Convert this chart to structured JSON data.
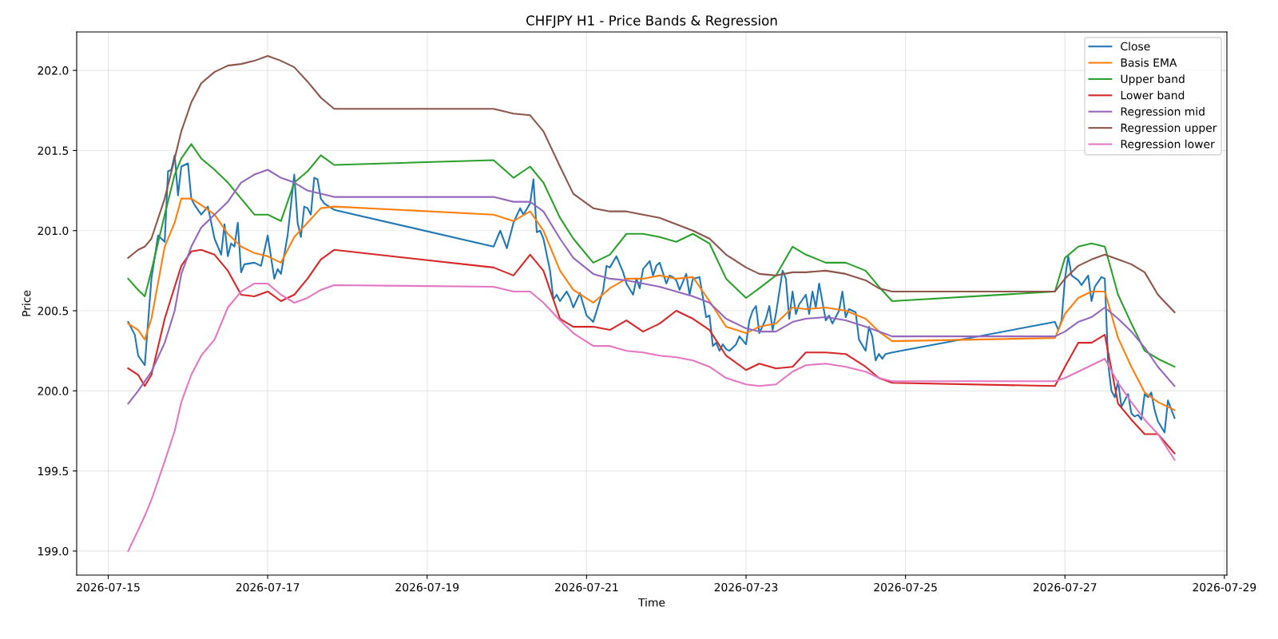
{
  "chart_data": {
    "type": "line",
    "title": "CHFJPY H1 - Price Bands & Regression",
    "xlabel": "Time",
    "ylabel": "Price",
    "series": [
      {
        "name": "Close",
        "color": "#1f77b4",
        "x": [
          "2026-07-15T06:00",
          "2026-07-15T08:00",
          "2026-07-15T09:00",
          "2026-07-15T11:00",
          "2026-07-15T13:00",
          "2026-07-15T15:00",
          "2026-07-15T17:00",
          "2026-07-15T18:00",
          "2026-07-15T19:00",
          "2026-07-15T20:00",
          "2026-07-15T21:00",
          "2026-07-15T22:00",
          "2026-07-16T00:00",
          "2026-07-16T01:00",
          "2026-07-16T02:00",
          "2026-07-16T04:00",
          "2026-07-16T06:00",
          "2026-07-16T08:00",
          "2026-07-16T10:00",
          "2026-07-16T11:00",
          "2026-07-16T12:00",
          "2026-07-16T13:00",
          "2026-07-16T14:00",
          "2026-07-16T15:00",
          "2026-07-16T16:00",
          "2026-07-16T17:00",
          "2026-07-16T20:00",
          "2026-07-16T22:00",
          "2026-07-17T00:00",
          "2026-07-17T02:00",
          "2026-07-17T03:00",
          "2026-07-17T04:00",
          "2026-07-17T06:00",
          "2026-07-17T08:00",
          "2026-07-17T09:00",
          "2026-07-17T10:00",
          "2026-07-17T11:00",
          "2026-07-17T12:00",
          "2026-07-17T13:00",
          "2026-07-17T14:00",
          "2026-07-17T15:00",
          "2026-07-17T16:00",
          "2026-07-17T17:00",
          "2026-07-17T20:00",
          "2026-07-19T20:00",
          "2026-07-19T22:00",
          "2026-07-20T00:00",
          "2026-07-20T02:00",
          "2026-07-20T04:00",
          "2026-07-20T05:00",
          "2026-07-20T07:00",
          "2026-07-20T08:00",
          "2026-07-20T09:00",
          "2026-07-20T10:00",
          "2026-07-20T11:00",
          "2026-07-20T13:00",
          "2026-07-20T14:00",
          "2026-07-20T15:00",
          "2026-07-20T16:00",
          "2026-07-20T18:00",
          "2026-07-20T19:00",
          "2026-07-20T20:00",
          "2026-07-20T22:00",
          "2026-07-21T00:00",
          "2026-07-21T02:00",
          "2026-07-21T05:00",
          "2026-07-21T06:00",
          "2026-07-21T07:00",
          "2026-07-21T09:00",
          "2026-07-21T11:00",
          "2026-07-21T12:00",
          "2026-07-21T14:00",
          "2026-07-21T15:00",
          "2026-07-21T16:00",
          "2026-07-21T17:00",
          "2026-07-21T19:00",
          "2026-07-21T20:00",
          "2026-07-21T21:00",
          "2026-07-21T22:00",
          "2026-07-22T00:00",
          "2026-07-22T01:00",
          "2026-07-22T02:00",
          "2026-07-22T03:00",
          "2026-07-22T04:00",
          "2026-07-22T06:00",
          "2026-07-22T07:00",
          "2026-07-22T08:00",
          "2026-07-22T10:00",
          "2026-07-22T12:00",
          "2026-07-22T13:00",
          "2026-07-22T14:00",
          "2026-07-22T15:00",
          "2026-07-22T16:00",
          "2026-07-22T17:00",
          "2026-07-22T18:00",
          "2026-07-22T19:00",
          "2026-07-22T21:00",
          "2026-07-22T22:00",
          "2026-07-23T00:00",
          "2026-07-23T01:00",
          "2026-07-23T02:00",
          "2026-07-23T03:00",
          "2026-07-23T04:00",
          "2026-07-23T06:00",
          "2026-07-23T07:00",
          "2026-07-23T08:00",
          "2026-07-23T09:00",
          "2026-07-23T11:00",
          "2026-07-23T12:00",
          "2026-07-23T13:00",
          "2026-07-23T14:00",
          "2026-07-23T15:00",
          "2026-07-23T16:00",
          "2026-07-23T18:00",
          "2026-07-23T19:00",
          "2026-07-23T20:00",
          "2026-07-23T21:00",
          "2026-07-23T22:00",
          "2026-07-24T00:00",
          "2026-07-24T01:00",
          "2026-07-24T02:00",
          "2026-07-24T04:00",
          "2026-07-24T05:00",
          "2026-07-24T06:00",
          "2026-07-24T07:00",
          "2026-07-24T09:00",
          "2026-07-24T10:00",
          "2026-07-24T12:00",
          "2026-07-24T13:00",
          "2026-07-24T14:00",
          "2026-07-24T15:00",
          "2026-07-24T16:00",
          "2026-07-24T17:00",
          "2026-07-24T18:00",
          "2026-07-24T20:00",
          "2026-07-26T21:00",
          "2026-07-26T22:00",
          "2026-07-26T23:00",
          "2026-07-27T00:00",
          "2026-07-27T01:00",
          "2026-07-27T02:00",
          "2026-07-27T04:00",
          "2026-07-27T05:00",
          "2026-07-27T07:00",
          "2026-07-27T08:00",
          "2026-07-27T09:00",
          "2026-07-27T10:00",
          "2026-07-27T11:00",
          "2026-07-27T12:00",
          "2026-07-27T13:00",
          "2026-07-27T14:00",
          "2026-07-27T15:00",
          "2026-07-27T16:00",
          "2026-07-27T17:00",
          "2026-07-27T19:00",
          "2026-07-27T20:00",
          "2026-07-27T21:00",
          "2026-07-27T22:00",
          "2026-07-27T23:00",
          "2026-07-28T00:00",
          "2026-07-28T01:00",
          "2026-07-28T02:00",
          "2026-07-28T03:00",
          "2026-07-28T04:00",
          "2026-07-28T06:00",
          "2026-07-28T07:00",
          "2026-07-28T09:00"
        ],
        "values": [
          200.43,
          200.35,
          200.22,
          200.16,
          200.7,
          200.97,
          200.93,
          201.37,
          201.38,
          201.47,
          201.22,
          201.4,
          201.42,
          201.2,
          201.16,
          201.1,
          201.15,
          200.95,
          200.85,
          201.04,
          200.84,
          200.92,
          200.9,
          201.05,
          200.74,
          200.79,
          200.8,
          200.78,
          200.97,
          200.7,
          200.76,
          200.73,
          200.97,
          201.35,
          201.05,
          200.96,
          201.15,
          201.14,
          201.1,
          201.33,
          201.32,
          201.2,
          201.17,
          201.13,
          200.9,
          201.0,
          200.89,
          201.05,
          201.14,
          201.1,
          201.17,
          201.32,
          200.99,
          201.0,
          200.95,
          200.75,
          200.57,
          200.6,
          200.56,
          200.62,
          200.58,
          200.52,
          200.61,
          200.47,
          200.43,
          200.63,
          200.78,
          200.77,
          200.84,
          200.74,
          200.67,
          200.6,
          200.7,
          200.64,
          200.76,
          200.81,
          200.72,
          200.78,
          200.8,
          200.67,
          200.72,
          200.71,
          200.69,
          200.63,
          200.73,
          200.6,
          200.7,
          200.71,
          200.46,
          200.47,
          200.28,
          200.3,
          200.25,
          200.29,
          200.26,
          200.25,
          200.29,
          200.34,
          200.29,
          200.44,
          200.5,
          200.53,
          200.36,
          200.45,
          200.53,
          200.38,
          200.48,
          200.75,
          200.7,
          200.45,
          200.62,
          200.48,
          200.54,
          200.6,
          200.48,
          200.62,
          200.52,
          200.67,
          200.44,
          200.47,
          200.42,
          200.5,
          200.62,
          200.46,
          200.51,
          200.49,
          200.32,
          200.25,
          200.4,
          200.34,
          200.19,
          200.23,
          200.2,
          200.23,
          200.24,
          200.43,
          200.38,
          200.44,
          200.7,
          200.84,
          200.72,
          200.69,
          200.66,
          200.72,
          200.56,
          200.65,
          200.68,
          200.71,
          200.7,
          200.17,
          200.0,
          199.96,
          200.06,
          199.9,
          199.98,
          199.86,
          199.84,
          199.85,
          199.82,
          199.98,
          199.96,
          199.99,
          199.88,
          199.81,
          199.74,
          199.94,
          199.83
        ]
      },
      {
        "name": "Basis EMA",
        "color": "#ff7f0e",
        "x": [
          "2026-07-15T06:00",
          "2026-07-15T09:00",
          "2026-07-15T11:00",
          "2026-07-15T13:00",
          "2026-07-15T17:00",
          "2026-07-15T20:00",
          "2026-07-15T22:00",
          "2026-07-16T01:00",
          "2026-07-16T04:00",
          "2026-07-16T08:00",
          "2026-07-16T12:00",
          "2026-07-16T16:00",
          "2026-07-16T20:00",
          "2026-07-17T00:00",
          "2026-07-17T04:00",
          "2026-07-17T08:00",
          "2026-07-17T12:00",
          "2026-07-17T16:00",
          "2026-07-17T20:00",
          "2026-07-19T20:00",
          "2026-07-20T02:00",
          "2026-07-20T07:00",
          "2026-07-20T11:00",
          "2026-07-20T16:00",
          "2026-07-20T20:00",
          "2026-07-21T02:00",
          "2026-07-21T07:00",
          "2026-07-21T12:00",
          "2026-07-21T17:00",
          "2026-07-21T22:00",
          "2026-07-22T03:00",
          "2026-07-22T08:00",
          "2026-07-22T13:00",
          "2026-07-22T18:00",
          "2026-07-23T00:00",
          "2026-07-23T04:00",
          "2026-07-23T09:00",
          "2026-07-23T14:00",
          "2026-07-23T18:00",
          "2026-07-24T00:00",
          "2026-07-24T06:00",
          "2026-07-24T12:00",
          "2026-07-24T16:00",
          "2026-07-24T20:00",
          "2026-07-26T21:00",
          "2026-07-27T00:00",
          "2026-07-27T04:00",
          "2026-07-27T08:00",
          "2026-07-27T12:00",
          "2026-07-27T16:00",
          "2026-07-27T20:00",
          "2026-07-28T00:00",
          "2026-07-28T04:00",
          "2026-07-28T09:00"
        ],
        "values": [
          200.42,
          200.38,
          200.32,
          200.45,
          200.9,
          201.05,
          201.2,
          201.2,
          201.16,
          201.1,
          200.98,
          200.9,
          200.86,
          200.84,
          200.8,
          200.96,
          201.05,
          201.14,
          201.15,
          201.1,
          201.06,
          201.12,
          201.0,
          200.75,
          200.63,
          200.55,
          200.64,
          200.7,
          200.7,
          200.72,
          200.7,
          200.71,
          200.56,
          200.4,
          200.36,
          200.4,
          200.42,
          200.52,
          200.51,
          200.52,
          200.5,
          200.45,
          200.37,
          200.31,
          200.33,
          200.48,
          200.58,
          200.62,
          200.62,
          200.33,
          200.15,
          199.99,
          199.93,
          199.88
        ]
      },
      {
        "name": "Upper band",
        "color": "#2ca02c",
        "x": [
          "2026-07-15T06:00",
          "2026-07-15T09:00",
          "2026-07-15T11:00",
          "2026-07-15T13:00",
          "2026-07-15T17:00",
          "2026-07-15T20:00",
          "2026-07-15T22:00",
          "2026-07-16T01:00",
          "2026-07-16T04:00",
          "2026-07-16T08:00",
          "2026-07-16T12:00",
          "2026-07-16T16:00",
          "2026-07-16T20:00",
          "2026-07-17T00:00",
          "2026-07-17T04:00",
          "2026-07-17T08:00",
          "2026-07-17T12:00",
          "2026-07-17T16:00",
          "2026-07-17T20:00",
          "2026-07-19T20:00",
          "2026-07-20T02:00",
          "2026-07-20T07:00",
          "2026-07-20T11:00",
          "2026-07-20T16:00",
          "2026-07-20T20:00",
          "2026-07-21T02:00",
          "2026-07-21T07:00",
          "2026-07-21T12:00",
          "2026-07-21T17:00",
          "2026-07-21T22:00",
          "2026-07-22T03:00",
          "2026-07-22T08:00",
          "2026-07-22T13:00",
          "2026-07-22T18:00",
          "2026-07-23T00:00",
          "2026-07-23T04:00",
          "2026-07-23T09:00",
          "2026-07-23T14:00",
          "2026-07-23T18:00",
          "2026-07-24T00:00",
          "2026-07-24T06:00",
          "2026-07-24T12:00",
          "2026-07-24T16:00",
          "2026-07-24T20:00",
          "2026-07-26T21:00",
          "2026-07-27T00:00",
          "2026-07-27T04:00",
          "2026-07-27T08:00",
          "2026-07-27T12:00",
          "2026-07-27T16:00",
          "2026-07-27T20:00",
          "2026-07-28T00:00",
          "2026-07-28T04:00",
          "2026-07-28T09:00"
        ],
        "values": [
          200.7,
          200.63,
          200.59,
          200.75,
          201.1,
          201.35,
          201.45,
          201.54,
          201.45,
          201.38,
          201.3,
          201.2,
          201.1,
          201.1,
          201.06,
          201.3,
          201.37,
          201.47,
          201.41,
          201.44,
          201.33,
          201.4,
          201.3,
          201.08,
          200.95,
          200.8,
          200.85,
          200.98,
          200.98,
          200.96,
          200.93,
          200.98,
          200.92,
          200.7,
          200.58,
          200.64,
          200.72,
          200.9,
          200.85,
          200.8,
          200.8,
          200.75,
          200.65,
          200.56,
          200.62,
          200.83,
          200.9,
          200.92,
          200.9,
          200.6,
          200.42,
          200.25,
          200.2,
          200.15
        ]
      },
      {
        "name": "Lower band",
        "color": "#d62728",
        "x": [
          "2026-07-15T06:00",
          "2026-07-15T09:00",
          "2026-07-15T11:00",
          "2026-07-15T13:00",
          "2026-07-15T17:00",
          "2026-07-15T20:00",
          "2026-07-15T22:00",
          "2026-07-16T01:00",
          "2026-07-16T04:00",
          "2026-07-16T08:00",
          "2026-07-16T12:00",
          "2026-07-16T16:00",
          "2026-07-16T20:00",
          "2026-07-17T00:00",
          "2026-07-17T04:00",
          "2026-07-17T08:00",
          "2026-07-17T12:00",
          "2026-07-17T16:00",
          "2026-07-17T20:00",
          "2026-07-19T20:00",
          "2026-07-20T02:00",
          "2026-07-20T07:00",
          "2026-07-20T11:00",
          "2026-07-20T16:00",
          "2026-07-20T20:00",
          "2026-07-21T02:00",
          "2026-07-21T07:00",
          "2026-07-21T12:00",
          "2026-07-21T17:00",
          "2026-07-21T22:00",
          "2026-07-22T03:00",
          "2026-07-22T08:00",
          "2026-07-22T13:00",
          "2026-07-22T18:00",
          "2026-07-23T00:00",
          "2026-07-23T04:00",
          "2026-07-23T09:00",
          "2026-07-23T14:00",
          "2026-07-23T18:00",
          "2026-07-24T00:00",
          "2026-07-24T06:00",
          "2026-07-24T12:00",
          "2026-07-24T16:00",
          "2026-07-24T20:00",
          "2026-07-26T21:00",
          "2026-07-27T00:00",
          "2026-07-27T04:00",
          "2026-07-27T08:00",
          "2026-07-27T12:00",
          "2026-07-27T16:00",
          "2026-07-27T20:00",
          "2026-07-28T00:00",
          "2026-07-28T04:00",
          "2026-07-28T09:00"
        ],
        "values": [
          200.14,
          200.1,
          200.03,
          200.1,
          200.45,
          200.65,
          200.78,
          200.87,
          200.88,
          200.85,
          200.75,
          200.6,
          200.59,
          200.62,
          200.56,
          200.6,
          200.7,
          200.82,
          200.88,
          200.77,
          200.72,
          200.85,
          200.75,
          200.45,
          200.4,
          200.4,
          200.38,
          200.44,
          200.37,
          200.42,
          200.5,
          200.45,
          200.38,
          200.22,
          200.13,
          200.17,
          200.14,
          200.15,
          200.24,
          200.24,
          200.23,
          200.15,
          200.08,
          200.05,
          200.03,
          200.15,
          200.3,
          200.3,
          200.35,
          199.92,
          199.82,
          199.73,
          199.73,
          199.61
        ]
      },
      {
        "name": "Regression mid",
        "color": "#9467bd",
        "x": [
          "2026-07-15T06:00",
          "2026-07-15T09:00",
          "2026-07-15T11:00",
          "2026-07-15T13:00",
          "2026-07-15T17:00",
          "2026-07-15T20:00",
          "2026-07-15T22:00",
          "2026-07-16T01:00",
          "2026-07-16T04:00",
          "2026-07-16T08:00",
          "2026-07-16T12:00",
          "2026-07-16T16:00",
          "2026-07-16T20:00",
          "2026-07-17T00:00",
          "2026-07-17T04:00",
          "2026-07-17T08:00",
          "2026-07-17T12:00",
          "2026-07-17T16:00",
          "2026-07-17T20:00",
          "2026-07-19T20:00",
          "2026-07-20T02:00",
          "2026-07-20T07:00",
          "2026-07-20T11:00",
          "2026-07-20T16:00",
          "2026-07-20T20:00",
          "2026-07-21T02:00",
          "2026-07-21T07:00",
          "2026-07-21T12:00",
          "2026-07-21T17:00",
          "2026-07-21T22:00",
          "2026-07-22T03:00",
          "2026-07-22T08:00",
          "2026-07-22T13:00",
          "2026-07-22T18:00",
          "2026-07-23T00:00",
          "2026-07-23T04:00",
          "2026-07-23T09:00",
          "2026-07-23T14:00",
          "2026-07-23T18:00",
          "2026-07-24T00:00",
          "2026-07-24T06:00",
          "2026-07-24T12:00",
          "2026-07-24T16:00",
          "2026-07-24T20:00",
          "2026-07-26T21:00",
          "2026-07-27T00:00",
          "2026-07-27T04:00",
          "2026-07-27T08:00",
          "2026-07-27T12:00",
          "2026-07-27T16:00",
          "2026-07-27T20:00",
          "2026-07-28T00:00",
          "2026-07-28T04:00",
          "2026-07-28T09:00"
        ],
        "values": [
          199.92,
          200.0,
          200.06,
          200.12,
          200.3,
          200.5,
          200.73,
          200.9,
          201.02,
          201.1,
          201.18,
          201.3,
          201.35,
          201.38,
          201.33,
          201.3,
          201.25,
          201.23,
          201.21,
          201.21,
          201.18,
          201.18,
          201.12,
          200.95,
          200.83,
          200.73,
          200.7,
          200.69,
          200.67,
          200.65,
          200.62,
          200.59,
          200.55,
          200.45,
          200.39,
          200.37,
          200.37,
          200.43,
          200.45,
          200.46,
          200.44,
          200.4,
          200.37,
          200.34,
          200.34,
          200.37,
          200.43,
          200.46,
          200.52,
          200.45,
          200.37,
          200.27,
          200.15,
          200.03
        ]
      },
      {
        "name": "Regression upper",
        "color": "#8c564b",
        "x": [
          "2026-07-15T06:00",
          "2026-07-15T09:00",
          "2026-07-15T11:00",
          "2026-07-15T13:00",
          "2026-07-15T17:00",
          "2026-07-15T20:00",
          "2026-07-15T22:00",
          "2026-07-16T01:00",
          "2026-07-16T04:00",
          "2026-07-16T08:00",
          "2026-07-16T12:00",
          "2026-07-16T16:00",
          "2026-07-16T20:00",
          "2026-07-17T00:00",
          "2026-07-17T04:00",
          "2026-07-17T08:00",
          "2026-07-17T12:00",
          "2026-07-17T16:00",
          "2026-07-17T20:00",
          "2026-07-19T20:00",
          "2026-07-20T02:00",
          "2026-07-20T07:00",
          "2026-07-20T11:00",
          "2026-07-20T16:00",
          "2026-07-20T20:00",
          "2026-07-21T02:00",
          "2026-07-21T07:00",
          "2026-07-21T12:00",
          "2026-07-21T17:00",
          "2026-07-21T22:00",
          "2026-07-22T03:00",
          "2026-07-22T08:00",
          "2026-07-22T13:00",
          "2026-07-22T18:00",
          "2026-07-23T00:00",
          "2026-07-23T04:00",
          "2026-07-23T09:00",
          "2026-07-23T14:00",
          "2026-07-23T18:00",
          "2026-07-24T00:00",
          "2026-07-24T06:00",
          "2026-07-24T12:00",
          "2026-07-24T16:00",
          "2026-07-24T20:00",
          "2026-07-26T21:00",
          "2026-07-27T00:00",
          "2026-07-27T04:00",
          "2026-07-27T08:00",
          "2026-07-27T12:00",
          "2026-07-27T16:00",
          "2026-07-27T20:00",
          "2026-07-28T00:00",
          "2026-07-28T04:00",
          "2026-07-28T09:00"
        ],
        "values": [
          200.83,
          200.88,
          200.9,
          200.95,
          201.2,
          201.45,
          201.62,
          201.8,
          201.92,
          201.99,
          202.03,
          202.04,
          202.06,
          202.09,
          202.06,
          202.02,
          201.93,
          201.83,
          201.76,
          201.76,
          201.73,
          201.72,
          201.62,
          201.4,
          201.23,
          201.14,
          201.12,
          201.12,
          201.1,
          201.08,
          201.04,
          201.0,
          200.95,
          200.85,
          200.77,
          200.73,
          200.72,
          200.74,
          200.74,
          200.75,
          200.73,
          200.69,
          200.64,
          200.62,
          200.62,
          200.7,
          200.78,
          200.82,
          200.85,
          200.82,
          200.79,
          200.74,
          200.6,
          200.49
        ]
      },
      {
        "name": "Regression lower",
        "color": "#e377c2",
        "x": [
          "2026-07-15T06:00",
          "2026-07-15T09:00",
          "2026-07-15T11:00",
          "2026-07-15T13:00",
          "2026-07-15T17:00",
          "2026-07-15T20:00",
          "2026-07-15T22:00",
          "2026-07-16T01:00",
          "2026-07-16T04:00",
          "2026-07-16T08:00",
          "2026-07-16T12:00",
          "2026-07-16T16:00",
          "2026-07-16T20:00",
          "2026-07-17T00:00",
          "2026-07-17T04:00",
          "2026-07-17T08:00",
          "2026-07-17T12:00",
          "2026-07-17T16:00",
          "2026-07-17T20:00",
          "2026-07-19T20:00",
          "2026-07-20T02:00",
          "2026-07-20T07:00",
          "2026-07-20T11:00",
          "2026-07-20T16:00",
          "2026-07-20T20:00",
          "2026-07-21T02:00",
          "2026-07-21T07:00",
          "2026-07-21T12:00",
          "2026-07-21T17:00",
          "2026-07-21T22:00",
          "2026-07-22T03:00",
          "2026-07-22T08:00",
          "2026-07-22T13:00",
          "2026-07-22T18:00",
          "2026-07-23T00:00",
          "2026-07-23T04:00",
          "2026-07-23T09:00",
          "2026-07-23T14:00",
          "2026-07-23T18:00",
          "2026-07-24T00:00",
          "2026-07-24T06:00",
          "2026-07-24T12:00",
          "2026-07-24T16:00",
          "2026-07-24T20:00",
          "2026-07-26T21:00",
          "2026-07-27T00:00",
          "2026-07-27T04:00",
          "2026-07-27T08:00",
          "2026-07-27T12:00",
          "2026-07-27T16:00",
          "2026-07-27T20:00",
          "2026-07-28T00:00",
          "2026-07-28T04:00",
          "2026-07-28T09:00"
        ],
        "values": [
          199.0,
          199.13,
          199.22,
          199.32,
          199.56,
          199.75,
          199.93,
          200.1,
          200.22,
          200.32,
          200.52,
          200.62,
          200.67,
          200.67,
          200.6,
          200.55,
          200.58,
          200.63,
          200.66,
          200.65,
          200.62,
          200.62,
          200.55,
          200.44,
          200.36,
          200.28,
          200.28,
          200.25,
          200.24,
          200.22,
          200.21,
          200.19,
          200.15,
          200.08,
          200.04,
          200.03,
          200.04,
          200.12,
          200.16,
          200.17,
          200.15,
          200.12,
          200.08,
          200.06,
          200.06,
          200.08,
          200.12,
          200.16,
          200.2,
          200.05,
          199.93,
          199.82,
          199.73,
          199.57
        ]
      }
    ],
    "xlim": [
      "2026-07-14T14:30",
      "2026-07-29T00:45"
    ],
    "xticks": [
      "2026-07-15",
      "2026-07-17",
      "2026-07-19",
      "2026-07-21",
      "2026-07-23",
      "2026-07-25",
      "2026-07-27",
      "2026-07-29"
    ],
    "ylim": [
      198.85,
      202.24
    ],
    "yticks": [
      {
        "value": 199,
        "label": "199.0"
      },
      {
        "value": 199.5,
        "label": "199.5"
      },
      {
        "value": 200,
        "label": "200.0"
      },
      {
        "value": 200.5,
        "label": "200.5"
      },
      {
        "value": 201,
        "label": "201.0"
      },
      {
        "value": 201.5,
        "label": "201.5"
      },
      {
        "value": 202,
        "label": "202.0"
      }
    ],
    "grid": true,
    "legend": "top right",
    "marker": "none",
    "line_style": "solid"
  }
}
